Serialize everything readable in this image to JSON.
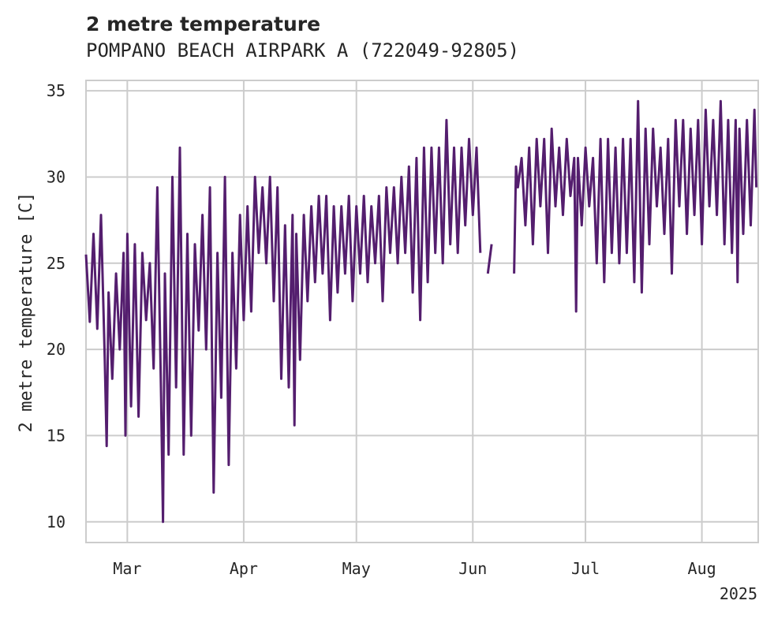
{
  "chart_data": {
    "type": "line",
    "title": "2 metre temperature",
    "subtitle": "POMPANO BEACH AIRPARK A (722049-92805)",
    "xlabel": "",
    "ylabel": "2 metre temperature [C]",
    "x_range": [
      "2025-02-18",
      "2025-08-16"
    ],
    "ylim": [
      8.8,
      35.6
    ],
    "yticks": [
      10,
      15,
      20,
      25,
      30,
      35
    ],
    "xticks": [
      {
        "date": "2025-03-01",
        "label": "Mar"
      },
      {
        "date": "2025-04-01",
        "label": "Apr"
      },
      {
        "date": "2025-05-01",
        "label": "May"
      },
      {
        "date": "2025-06-01",
        "label": "Jun"
      },
      {
        "date": "2025-07-01",
        "label": "Jul"
      },
      {
        "date": "2025-08-01",
        "label": "Aug"
      }
    ],
    "x_offset_label": "2025",
    "grid": true,
    "line_color": "#541e6e",
    "series": [
      {
        "segments": [
          [
            [
              "2025-02-18",
              25.5
            ],
            [
              "2025-02-19",
              21.6
            ],
            [
              "2025-02-20",
              26.7
            ],
            [
              "2025-02-21",
              21.2
            ],
            [
              "2025-02-22",
              27.8
            ],
            [
              "2025-02-23",
              19.4
            ],
            [
              "2025-02-23T12:00",
              14.4
            ],
            [
              "2025-02-24",
              23.3
            ],
            [
              "2025-02-25",
              18.3
            ],
            [
              "2025-02-26",
              24.4
            ],
            [
              "2025-02-27",
              20.0
            ],
            [
              "2025-02-28",
              25.6
            ],
            [
              "2025-02-28T12:00",
              15.0
            ],
            [
              "2025-03-01",
              26.7
            ],
            [
              "2025-03-02",
              16.7
            ],
            [
              "2025-03-03",
              26.1
            ],
            [
              "2025-03-04",
              16.1
            ],
            [
              "2025-03-05",
              25.6
            ],
            [
              "2025-03-06",
              21.7
            ],
            [
              "2025-03-07",
              25.0
            ],
            [
              "2025-03-08",
              18.9
            ],
            [
              "2025-03-09",
              29.4
            ],
            [
              "2025-03-10",
              17.2
            ],
            [
              "2025-03-10T12:00",
              10.0
            ],
            [
              "2025-03-11",
              24.4
            ],
            [
              "2025-03-12",
              13.9
            ],
            [
              "2025-03-13",
              30.0
            ],
            [
              "2025-03-14",
              17.8
            ],
            [
              "2025-03-15",
              31.7
            ],
            [
              "2025-03-16",
              13.9
            ],
            [
              "2025-03-17",
              26.7
            ],
            [
              "2025-03-18",
              15.0
            ],
            [
              "2025-03-19",
              26.1
            ],
            [
              "2025-03-20",
              21.1
            ],
            [
              "2025-03-21",
              27.8
            ],
            [
              "2025-03-22",
              20.0
            ],
            [
              "2025-03-23",
              29.4
            ],
            [
              "2025-03-24",
              11.7
            ],
            [
              "2025-03-25",
              25.6
            ],
            [
              "2025-03-26",
              17.2
            ],
            [
              "2025-03-27",
              30.0
            ],
            [
              "2025-03-28",
              13.3
            ],
            [
              "2025-03-29",
              25.6
            ],
            [
              "2025-03-30",
              18.9
            ],
            [
              "2025-03-31",
              27.8
            ],
            [
              "2025-04-01",
              21.7
            ],
            [
              "2025-04-02",
              28.3
            ],
            [
              "2025-04-03",
              22.2
            ],
            [
              "2025-04-04",
              30.0
            ],
            [
              "2025-04-05",
              25.6
            ],
            [
              "2025-04-06",
              29.4
            ],
            [
              "2025-04-07",
              25.0
            ],
            [
              "2025-04-08",
              30.0
            ],
            [
              "2025-04-09",
              22.8
            ],
            [
              "2025-04-10",
              29.4
            ],
            [
              "2025-04-11",
              18.3
            ],
            [
              "2025-04-12",
              27.2
            ],
            [
              "2025-04-13",
              17.8
            ],
            [
              "2025-04-14",
              27.8
            ],
            [
              "2025-04-14T12:00",
              15.6
            ],
            [
              "2025-04-15",
              26.7
            ],
            [
              "2025-04-16",
              19.4
            ],
            [
              "2025-04-17",
              27.8
            ],
            [
              "2025-04-18",
              22.8
            ],
            [
              "2025-04-19",
              28.3
            ],
            [
              "2025-04-20",
              23.9
            ],
            [
              "2025-04-21",
              28.9
            ],
            [
              "2025-04-22",
              24.4
            ],
            [
              "2025-04-23",
              28.9
            ],
            [
              "2025-04-24",
              21.7
            ],
            [
              "2025-04-25",
              28.3
            ],
            [
              "2025-04-26",
              23.3
            ],
            [
              "2025-04-27",
              28.3
            ],
            [
              "2025-04-28",
              24.4
            ],
            [
              "2025-04-29",
              28.9
            ],
            [
              "2025-04-30",
              22.8
            ],
            [
              "2025-05-01",
              28.3
            ],
            [
              "2025-05-02",
              24.4
            ],
            [
              "2025-05-03",
              28.9
            ],
            [
              "2025-05-04",
              23.9
            ],
            [
              "2025-05-05",
              28.3
            ],
            [
              "2025-05-06",
              25.0
            ],
            [
              "2025-05-07",
              28.9
            ],
            [
              "2025-05-08",
              22.8
            ],
            [
              "2025-05-09",
              29.4
            ],
            [
              "2025-05-10",
              25.6
            ],
            [
              "2025-05-11",
              29.4
            ],
            [
              "2025-05-12",
              25.0
            ],
            [
              "2025-05-13",
              30.0
            ],
            [
              "2025-05-14",
              25.6
            ],
            [
              "2025-05-15",
              30.6
            ],
            [
              "2025-05-16",
              23.3
            ],
            [
              "2025-05-17",
              31.1
            ],
            [
              "2025-05-18",
              21.7
            ],
            [
              "2025-05-19",
              31.7
            ],
            [
              "2025-05-20",
              23.9
            ],
            [
              "2025-05-21",
              31.7
            ],
            [
              "2025-05-22",
              25.6
            ],
            [
              "2025-05-23",
              31.7
            ],
            [
              "2025-05-24",
              25.0
            ],
            [
              "2025-05-25",
              33.3
            ],
            [
              "2025-05-26",
              26.1
            ],
            [
              "2025-05-27",
              31.7
            ],
            [
              "2025-05-28",
              25.6
            ],
            [
              "2025-05-29",
              31.7
            ],
            [
              "2025-05-30",
              27.2
            ],
            [
              "2025-05-31",
              32.2
            ],
            [
              "2025-06-01",
              27.8
            ],
            [
              "2025-06-02",
              31.7
            ],
            [
              "2025-06-03",
              25.6
            ]
          ],
          [
            [
              "2025-06-05",
              24.4
            ],
            [
              "2025-06-06",
              26.1
            ]
          ],
          [
            [
              "2025-06-12",
              24.4
            ],
            [
              "2025-06-12T12:00",
              30.6
            ],
            [
              "2025-06-13",
              29.4
            ],
            [
              "2025-06-14",
              31.1
            ],
            [
              "2025-06-15",
              27.2
            ],
            [
              "2025-06-16",
              31.7
            ],
            [
              "2025-06-17",
              26.1
            ],
            [
              "2025-06-18",
              32.2
            ],
            [
              "2025-06-19",
              28.3
            ],
            [
              "2025-06-20",
              32.2
            ],
            [
              "2025-06-21",
              25.6
            ],
            [
              "2025-06-22",
              32.8
            ],
            [
              "2025-06-23",
              28.3
            ],
            [
              "2025-06-24",
              31.7
            ],
            [
              "2025-06-25",
              27.8
            ],
            [
              "2025-06-26",
              32.2
            ],
            [
              "2025-06-27",
              28.9
            ],
            [
              "2025-06-28",
              31.1
            ],
            [
              "2025-06-28T12:00",
              22.2
            ],
            [
              "2025-06-29",
              31.1
            ],
            [
              "2025-06-30",
              27.2
            ],
            [
              "2025-07-01",
              31.7
            ],
            [
              "2025-07-02",
              28.3
            ],
            [
              "2025-07-03",
              31.1
            ],
            [
              "2025-07-04",
              25.0
            ],
            [
              "2025-07-05",
              32.2
            ],
            [
              "2025-07-06",
              23.9
            ],
            [
              "2025-07-07",
              32.2
            ],
            [
              "2025-07-08",
              25.6
            ],
            [
              "2025-07-09",
              31.7
            ],
            [
              "2025-07-10",
              25.0
            ],
            [
              "2025-07-11",
              32.2
            ],
            [
              "2025-07-12",
              25.6
            ],
            [
              "2025-07-13",
              32.2
            ],
            [
              "2025-07-14",
              23.9
            ],
            [
              "2025-07-15",
              34.4
            ],
            [
              "2025-07-16",
              23.3
            ],
            [
              "2025-07-17",
              32.8
            ],
            [
              "2025-07-18",
              26.1
            ],
            [
              "2025-07-19",
              32.8
            ],
            [
              "2025-07-20",
              28.3
            ],
            [
              "2025-07-21",
              31.7
            ],
            [
              "2025-07-22",
              26.7
            ],
            [
              "2025-07-23",
              32.2
            ],
            [
              "2025-07-24",
              24.4
            ],
            [
              "2025-07-25",
              33.3
            ],
            [
              "2025-07-26",
              28.3
            ],
            [
              "2025-07-27",
              33.3
            ],
            [
              "2025-07-28",
              26.7
            ],
            [
              "2025-07-29",
              32.8
            ],
            [
              "2025-07-30",
              27.8
            ],
            [
              "2025-07-31",
              33.3
            ],
            [
              "2025-08-01",
              26.1
            ],
            [
              "2025-08-02",
              33.9
            ],
            [
              "2025-08-03",
              28.3
            ],
            [
              "2025-08-04",
              33.3
            ],
            [
              "2025-08-05",
              27.8
            ],
            [
              "2025-08-06",
              34.4
            ],
            [
              "2025-08-07",
              26.1
            ],
            [
              "2025-08-08",
              33.3
            ],
            [
              "2025-08-09",
              25.6
            ],
            [
              "2025-08-10",
              33.3
            ],
            [
              "2025-08-10T12:00",
              23.9
            ],
            [
              "2025-08-11",
              32.8
            ],
            [
              "2025-08-12",
              26.7
            ],
            [
              "2025-08-13",
              33.3
            ],
            [
              "2025-08-14",
              27.2
            ],
            [
              "2025-08-15",
              33.9
            ],
            [
              "2025-08-15T12:00",
              29.4
            ]
          ]
        ]
      }
    ]
  }
}
